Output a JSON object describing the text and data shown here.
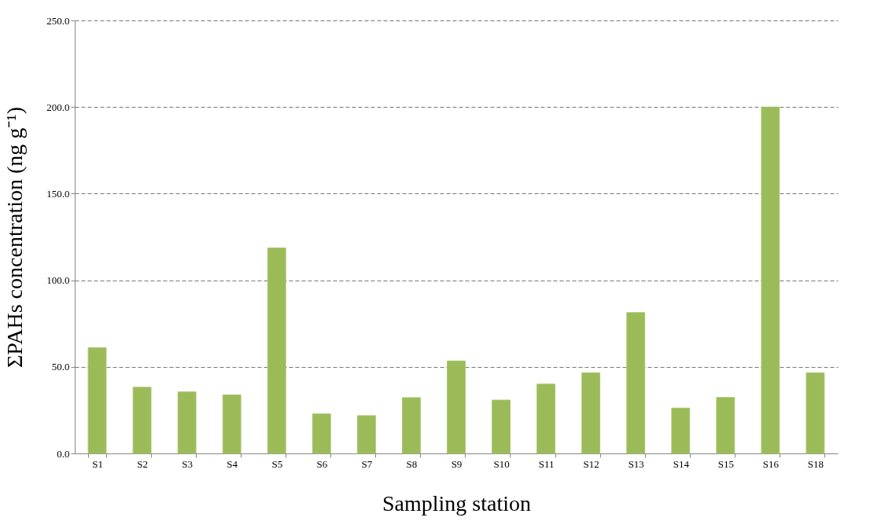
{
  "chart_data": {
    "type": "bar",
    "categories": [
      "S1",
      "S2",
      "S3",
      "S4",
      "S5",
      "S6",
      "S7",
      "S8",
      "S9",
      "S10",
      "S11",
      "S12",
      "S13",
      "S14",
      "S15",
      "S16",
      "S18"
    ],
    "values": [
      61.0,
      38.2,
      35.5,
      33.8,
      118.6,
      22.8,
      21.8,
      32.2,
      53.4,
      30.8,
      40.0,
      46.5,
      81.3,
      26.2,
      32.3,
      200.0,
      46.5
    ],
    "color": "#9bbb59",
    "xlabel": "Sampling station",
    "ylabel": "ΣPAHs concentration (ng g⁻¹)",
    "ylim": [
      0,
      250
    ],
    "yticks": [
      {
        "value": 0,
        "label": "0.0"
      },
      {
        "value": 50,
        "label": "50.0"
      },
      {
        "value": 100,
        "label": "100.0"
      },
      {
        "value": 150,
        "label": "150.0"
      },
      {
        "value": 200,
        "label": "200.0"
      },
      {
        "value": 250,
        "label": "250.0"
      }
    ],
    "grid": "y"
  }
}
